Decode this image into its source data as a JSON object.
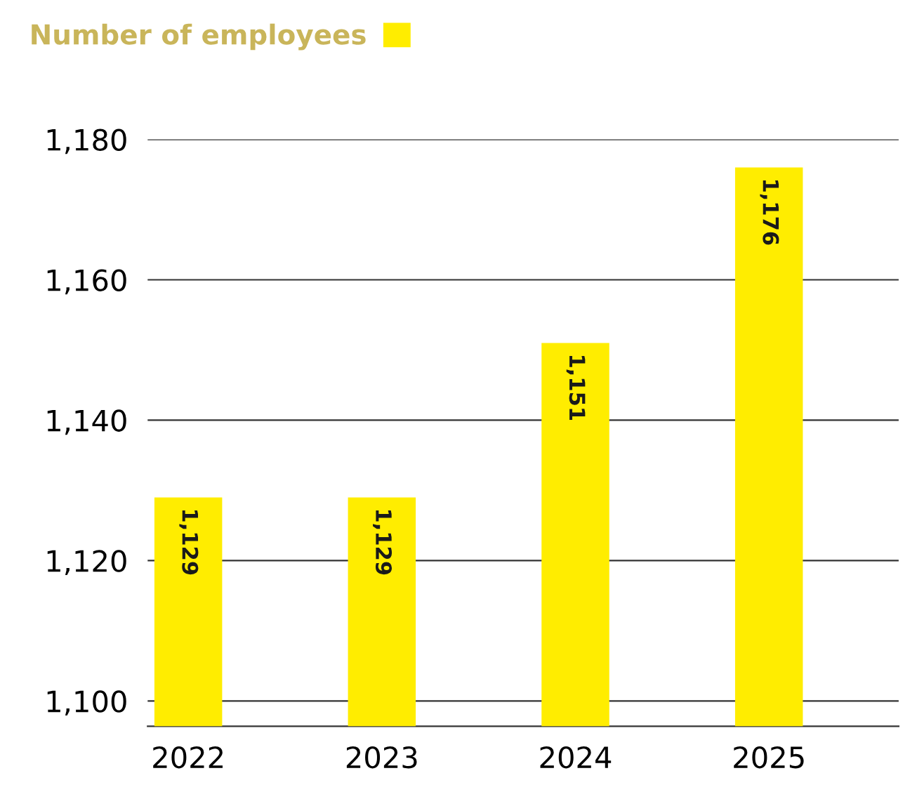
{
  "chart_data": {
    "type": "bar",
    "categories": [
      "2022",
      "2023",
      "2024",
      "2025"
    ],
    "series": [
      {
        "name": "Number of employees",
        "color": "#ffed00",
        "values": [
          1129,
          1129,
          1151,
          1176
        ],
        "value_labels": [
          "1,129",
          "1,129",
          "1,151",
          "1,176"
        ]
      }
    ],
    "ylim": [
      1096.4,
      1180
    ],
    "yticks": [
      {
        "value": 1100,
        "label": "1,100"
      },
      {
        "value": 1120,
        "label": "1,120"
      },
      {
        "value": 1140,
        "label": "1,140"
      },
      {
        "value": 1160,
        "label": "1,160"
      },
      {
        "value": 1180,
        "label": "1,180"
      }
    ],
    "grid": "y",
    "legend": "top left"
  }
}
